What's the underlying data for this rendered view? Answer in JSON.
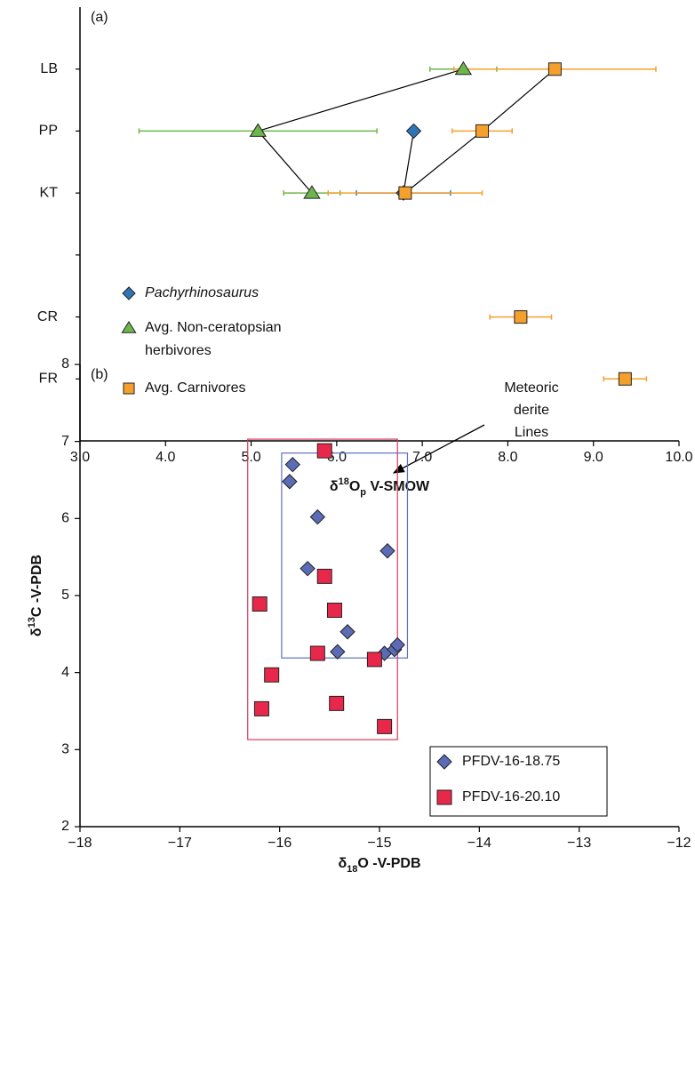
{
  "chart_data": [
    {
      "type": "dot_error",
      "panel_label": "(a)",
      "categories": [
        "LB",
        "PP",
        "KT",
        null,
        "CR",
        "FR"
      ],
      "xlabel": [
        "δ",
        "18",
        "O",
        "p",
        " V-SMOW"
      ],
      "xlim": [
        3,
        10
      ],
      "xticks": [
        {
          "value": 3,
          "label": "3.0"
        },
        {
          "value": 4,
          "label": "4.0"
        },
        {
          "value": 5,
          "label": "5.0"
        },
        {
          "value": 6,
          "label": "6.0"
        },
        {
          "value": 7,
          "label": "7.0"
        },
        {
          "value": 8,
          "label": "8.0"
        },
        {
          "value": 9,
          "label": "9.0"
        },
        {
          "value": 10,
          "label": "10.0"
        }
      ],
      "connect": [
        "LB",
        "PP",
        "KT"
      ],
      "series": [
        {
          "name": "Pachyrhinosaurus",
          "color": "#2e75b6",
          "marker": "diamond",
          "values": [
            null,
            6.9,
            6.78,
            null,
            null,
            null
          ],
          "errors": [
            null,
            null,
            0.55,
            null,
            null,
            null
          ]
        },
        {
          "name": "Avg. Non-ceratopsian herbivores",
          "color": "#6db64c",
          "marker": "triangle",
          "values": [
            7.48,
            5.08,
            5.71,
            null,
            null,
            null
          ],
          "errors": [
            0.39,
            1.39,
            0.33,
            null,
            null,
            null
          ]
        },
        {
          "name": "Avg. Carnivores",
          "color": "#f5a02c",
          "marker": "square",
          "values": [
            8.55,
            7.7,
            6.8,
            null,
            8.15,
            9.37
          ],
          "errors": [
            1.18,
            0.35,
            0.9,
            null,
            0.36,
            0.25
          ]
        }
      ]
    },
    {
      "type": "scatter",
      "panel_label": "(b)",
      "xlabel": [
        "δ",
        "18",
        "O -V-PDB"
      ],
      "ylabel": [
        "δ",
        "13",
        "C -V-PDB"
      ],
      "xlim": [
        -18,
        -12
      ],
      "xticks": [
        {
          "value": -18,
          "label": "−18"
        },
        {
          "value": -17,
          "label": "−17"
        },
        {
          "value": -16,
          "label": "−16"
        },
        {
          "value": -15,
          "label": "−15"
        },
        {
          "value": -14,
          "label": "−14"
        },
        {
          "value": -13,
          "label": "−13"
        },
        {
          "value": -12,
          "label": "−12"
        }
      ],
      "ylim": [
        2,
        8
      ],
      "yticks": [
        2,
        3,
        4,
        5,
        6,
        7,
        8
      ],
      "annotation": [
        "Meteoric",
        "derite",
        "Lines"
      ],
      "regions": [
        {
          "color": "#d6395c",
          "xlim": [
            -16.32,
            -14.82
          ],
          "ylim": [
            3.13,
            7.03
          ]
        },
        {
          "color": "#5f6fc0",
          "xlim": [
            -15.98,
            -14.72
          ],
          "ylim": [
            4.19,
            6.85
          ]
        }
      ],
      "series": [
        {
          "name": "PFDV-16-18.75",
          "color": "#5b6bb5",
          "marker": "diamond",
          "x": [
            -15.87,
            -15.9,
            -15.62,
            -14.92,
            -15.72,
            -15.32,
            -15.42,
            -14.95,
            -14.85,
            -14.82
          ],
          "values": [
            6.7,
            6.48,
            6.02,
            5.58,
            5.35,
            4.53,
            4.27,
            4.25,
            4.3,
            4.36
          ]
        },
        {
          "name": "PFDV-16-20.10",
          "color": "#e8284a",
          "marker": "square",
          "x": [
            -15.55,
            -15.55,
            -16.2,
            -15.45,
            -15.62,
            -16.08,
            -15.05,
            -16.18,
            -15.43,
            -14.95
          ],
          "values": [
            6.88,
            5.25,
            4.89,
            4.81,
            4.25,
            3.97,
            4.17,
            3.53,
            3.6,
            3.3
          ]
        }
      ]
    }
  ]
}
